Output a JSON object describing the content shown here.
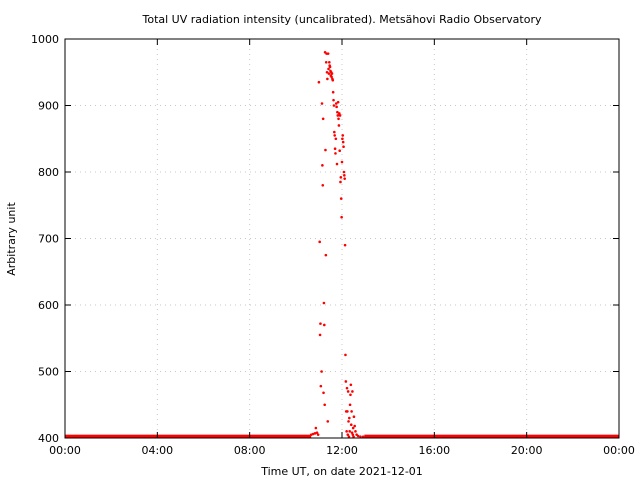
{
  "chart_data": {
    "type": "scatter",
    "title": "Total UV radiation intensity (uncalibrated). Metsähovi Radio Observatory",
    "xlabel": "Time UT, on date 2021-12-01",
    "ylabel": "Arbitrary unit",
    "xlim": [
      "00:00",
      "24:00"
    ],
    "ylim": [
      400,
      1000
    ],
    "x_ticks": [
      "00:00",
      "04:00",
      "08:00",
      "12:00",
      "16:00",
      "20:00",
      "00:00"
    ],
    "y_ticks": [
      400,
      500,
      600,
      700,
      800,
      900,
      1000
    ],
    "grid": true,
    "point_color": "#ff0000",
    "baseline": {
      "value": 402,
      "from": "00:00",
      "to": "10:40",
      "from2": "12:58",
      "to2": "24:00",
      "note_value": 402
    },
    "points": [
      [
        "10:40",
        405
      ],
      [
        "10:45",
        406
      ],
      [
        "10:50",
        407
      ],
      [
        "10:52",
        415
      ],
      [
        "10:55",
        408
      ],
      [
        "10:58",
        405
      ],
      [
        "11:00",
        935
      ],
      [
        "11:02",
        695
      ],
      [
        "11:03",
        555
      ],
      [
        "11:04",
        572
      ],
      [
        "11:05",
        478
      ],
      [
        "11:07",
        500
      ],
      [
        "11:08",
        903
      ],
      [
        "11:09",
        810
      ],
      [
        "11:10",
        780
      ],
      [
        "11:11",
        880
      ],
      [
        "11:12",
        468
      ],
      [
        "11:13",
        603
      ],
      [
        "11:14",
        570
      ],
      [
        "11:15",
        450
      ],
      [
        "11:16",
        980
      ],
      [
        "11:17",
        833
      ],
      [
        "11:18",
        675
      ],
      [
        "11:19",
        965
      ],
      [
        "11:20",
        978
      ],
      [
        "11:21",
        950
      ],
      [
        "11:22",
        940
      ],
      [
        "11:23",
        425
      ],
      [
        "11:24",
        978
      ],
      [
        "11:25",
        955
      ],
      [
        "11:26",
        948
      ],
      [
        "11:27",
        965
      ],
      [
        "11:28",
        960
      ],
      [
        "11:29",
        958
      ],
      [
        "11:30",
        952
      ],
      [
        "11:31",
        945
      ],
      [
        "11:32",
        950
      ],
      [
        "11:33",
        943
      ],
      [
        "11:34",
        948
      ],
      [
        "11:35",
        940
      ],
      [
        "11:36",
        938
      ],
      [
        "11:37",
        920
      ],
      [
        "11:38",
        908
      ],
      [
        "11:39",
        900
      ],
      [
        "11:40",
        860
      ],
      [
        "11:41",
        855
      ],
      [
        "11:42",
        835
      ],
      [
        "11:43",
        828
      ],
      [
        "11:44",
        850
      ],
      [
        "11:45",
        903
      ],
      [
        "11:46",
        898
      ],
      [
        "11:47",
        812
      ],
      [
        "11:48",
        890
      ],
      [
        "11:49",
        885
      ],
      [
        "11:50",
        905
      ],
      [
        "11:51",
        880
      ],
      [
        "11:52",
        870
      ],
      [
        "11:53",
        888
      ],
      [
        "11:54",
        832
      ],
      [
        "11:55",
        885
      ],
      [
        "11:56",
        785
      ],
      [
        "11:57",
        792
      ],
      [
        "11:58",
        760
      ],
      [
        "11:59",
        732
      ],
      [
        "12:00",
        815
      ],
      [
        "12:01",
        850
      ],
      [
        "12:02",
        855
      ],
      [
        "12:03",
        845
      ],
      [
        "12:04",
        838
      ],
      [
        "12:05",
        800
      ],
      [
        "12:06",
        795
      ],
      [
        "12:07",
        790
      ],
      [
        "12:08",
        690
      ],
      [
        "12:09",
        525
      ],
      [
        "12:10",
        485
      ],
      [
        "12:11",
        440
      ],
      [
        "12:12",
        410
      ],
      [
        "12:13",
        475
      ],
      [
        "12:14",
        440
      ],
      [
        "12:15",
        405
      ],
      [
        "12:16",
        470
      ],
      [
        "12:17",
        425
      ],
      [
        "12:18",
        402
      ],
      [
        "12:19",
        430
      ],
      [
        "12:20",
        410
      ],
      [
        "12:21",
        450
      ],
      [
        "12:22",
        465
      ],
      [
        "12:23",
        480
      ],
      [
        "12:24",
        420
      ],
      [
        "12:25",
        440
      ],
      [
        "12:26",
        408
      ],
      [
        "12:27",
        470
      ],
      [
        "12:28",
        405
      ],
      [
        "12:29",
        415
      ],
      [
        "12:30",
        402
      ],
      [
        "12:31",
        432
      ],
      [
        "12:33",
        418
      ],
      [
        "12:35",
        410
      ],
      [
        "12:38",
        405
      ],
      [
        "12:42",
        403
      ],
      [
        "12:48",
        402
      ],
      [
        "12:55",
        402
      ]
    ]
  }
}
